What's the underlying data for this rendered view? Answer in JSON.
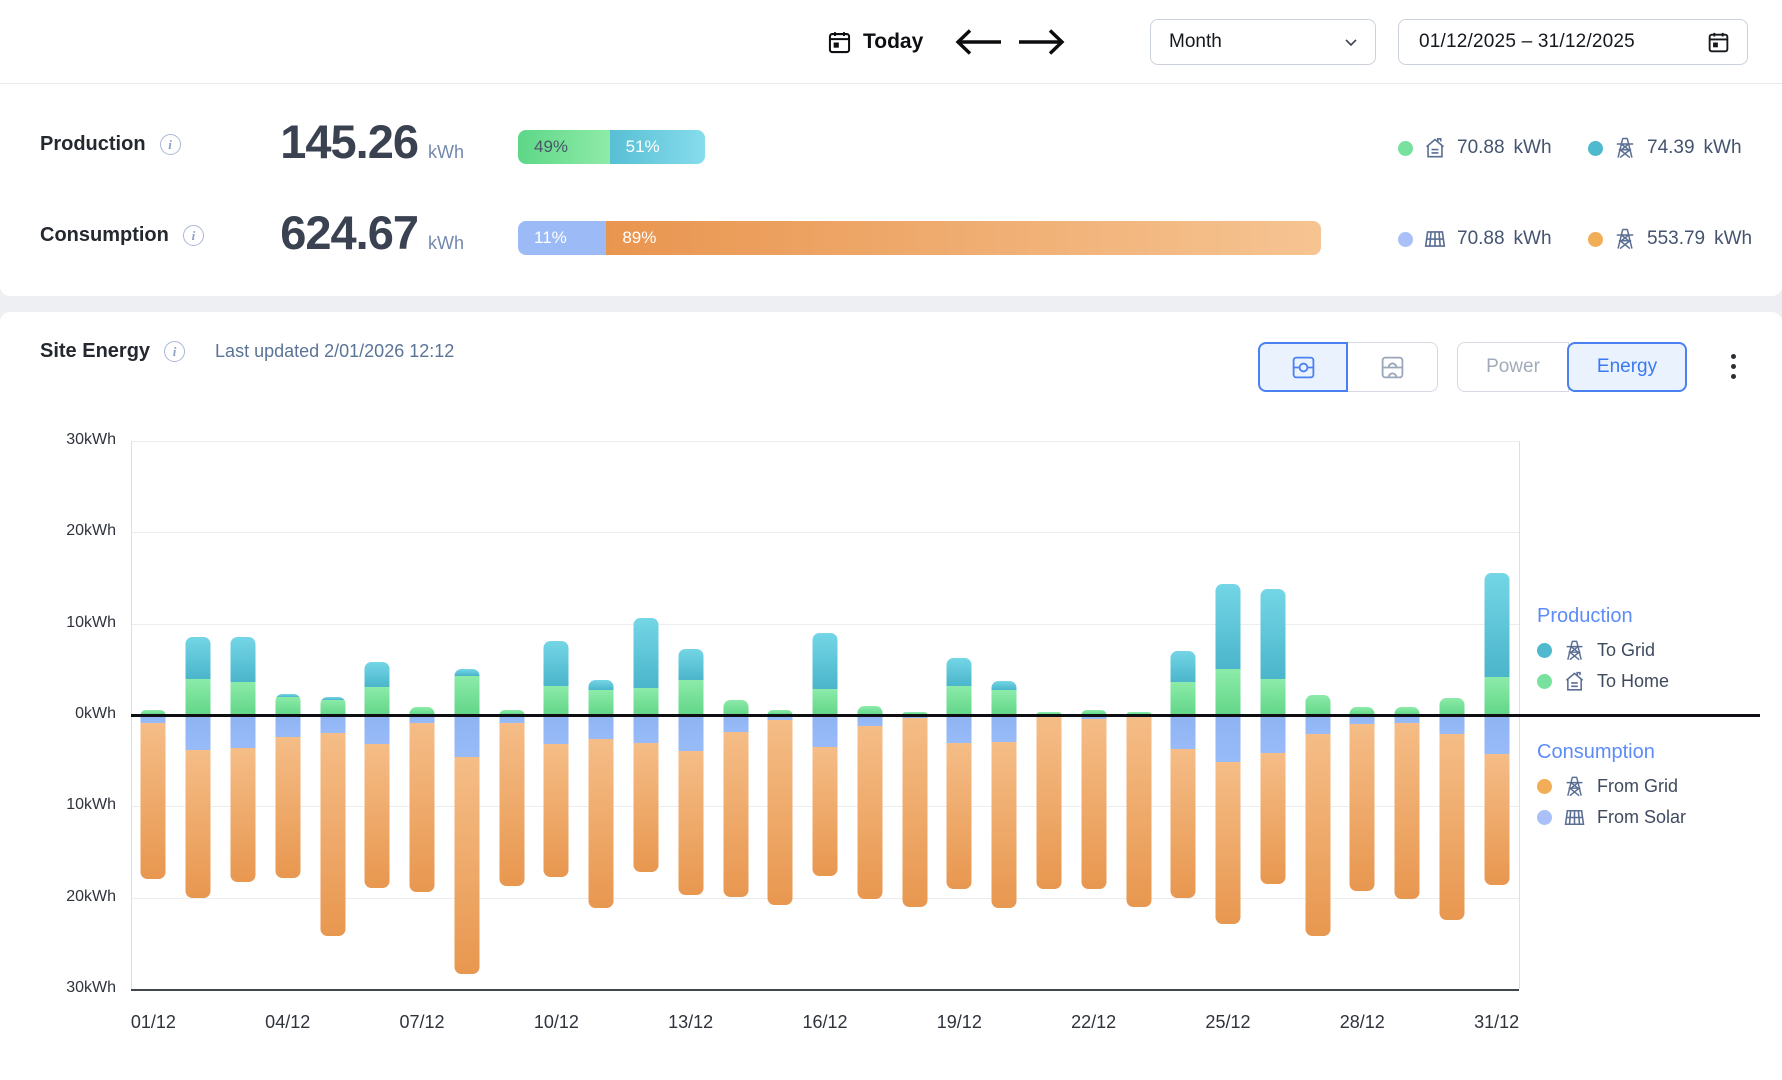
{
  "toolbar": {
    "today_label": "Today",
    "period_select": {
      "value": "Month"
    },
    "date_range": "01/12/2025 – 31/12/2025"
  },
  "summary": {
    "production": {
      "label": "Production",
      "value": "145.26",
      "unit": "kWh",
      "bar": {
        "segments": [
          {
            "label": "49%",
            "color": "#6edd92"
          },
          {
            "label": "51%",
            "color": "#6fcde0"
          }
        ]
      },
      "legend": [
        {
          "icon": "home-icon",
          "value": "70.88",
          "unit": "kWh",
          "color": "#79e19e"
        },
        {
          "icon": "grid-tower-icon",
          "value": "74.39",
          "unit": "kWh",
          "color": "#4fb9ce"
        }
      ]
    },
    "consumption": {
      "label": "Consumption",
      "value": "624.67",
      "unit": "kWh",
      "bar": {
        "segments": [
          {
            "label": "11%",
            "color": "#9cbaf6"
          },
          {
            "label": "89%",
            "color": "#efa565"
          }
        ]
      },
      "legend": [
        {
          "icon": "solar-panel-icon",
          "value": "70.88",
          "unit": "kWh",
          "color": "#a9c1f8"
        },
        {
          "icon": "grid-tower-icon",
          "value": "553.79",
          "unit": "kWh",
          "color": "#f2ae57"
        }
      ]
    }
  },
  "site_energy": {
    "title": "Site Energy",
    "last_updated": "Last updated 2/01/2026 12:12",
    "view_toggle": {
      "options": [
        "meter-view",
        "layered-view"
      ],
      "selected": "meter-view"
    },
    "mode_toggle": {
      "options": [
        "Power",
        "Energy"
      ],
      "selected": "Energy"
    }
  },
  "chart_data": {
    "type": "bar",
    "stacked": true,
    "orientation": "diverging",
    "unit": "kWh",
    "y_max": 30,
    "y_tick_step": 10,
    "grid": true,
    "y_axis_labels": [
      "30kWh",
      "20kWh",
      "10kWh",
      "0kWh",
      "10kWh",
      "20kWh",
      "30kWh"
    ],
    "categories": [
      "01/12",
      "02/12",
      "03/12",
      "04/12",
      "05/12",
      "06/12",
      "07/12",
      "08/12",
      "09/12",
      "10/12",
      "11/12",
      "12/12",
      "13/12",
      "14/12",
      "15/12",
      "16/12",
      "17/12",
      "18/12",
      "19/12",
      "20/12",
      "21/12",
      "22/12",
      "23/12",
      "24/12",
      "25/12",
      "26/12",
      "27/12",
      "28/12",
      "29/12",
      "30/12",
      "31/12"
    ],
    "x_tick_labels": [
      "01/12",
      "04/12",
      "07/12",
      "10/12",
      "13/12",
      "16/12",
      "19/12",
      "22/12",
      "25/12",
      "28/12",
      "31/12"
    ],
    "x_tick_every": 3,
    "series": [
      {
        "name": "To Grid",
        "group": "production",
        "direction": "up",
        "color": "#56bdd1",
        "values": [
          0.1,
          4.5,
          4.9,
          0.3,
          0.3,
          2.7,
          0,
          0.7,
          0,
          4.9,
          1.1,
          7.6,
          3.4,
          0,
          0,
          6.1,
          0,
          0,
          3.1,
          1.0,
          0,
          0,
          0,
          3.4,
          9.3,
          9.9,
          0,
          0,
          0,
          0,
          11.3
        ]
      },
      {
        "name": "To Home",
        "group": "production",
        "direction": "up",
        "color": "#78e09c",
        "values": [
          0.5,
          4.0,
          3.6,
          2.0,
          1.7,
          3.1,
          0.9,
          4.3,
          0.6,
          3.2,
          2.7,
          3.0,
          3.8,
          1.7,
          0.6,
          2.9,
          1.0,
          0.3,
          3.2,
          2.7,
          0.3,
          0.5,
          0.3,
          3.6,
          5.0,
          3.9,
          2.2,
          0.9,
          0.9,
          1.9,
          4.2
        ]
      },
      {
        "name": "From Solar",
        "group": "consumption",
        "direction": "down",
        "color": "#93b6f4",
        "values": [
          0.9,
          3.8,
          3.6,
          2.4,
          2.0,
          3.2,
          0.9,
          4.6,
          0.9,
          3.2,
          2.6,
          3.1,
          3.9,
          1.9,
          0.5,
          3.5,
          1.2,
          0.3,
          3.1,
          2.9,
          0.2,
          0.4,
          0.1,
          3.7,
          5.1,
          4.2,
          2.1,
          1.0,
          0.9,
          2.1,
          4.3
        ]
      },
      {
        "name": "From Grid",
        "group": "consumption",
        "direction": "down",
        "color": "#eda564",
        "values": [
          17.1,
          16.2,
          14.7,
          15.4,
          22.2,
          15.8,
          18.5,
          23.7,
          17.8,
          14.6,
          18.5,
          14.1,
          15.8,
          18.0,
          20.3,
          14.1,
          18.9,
          20.7,
          16.0,
          18.2,
          18.9,
          18.6,
          20.9,
          16.3,
          17.8,
          14.3,
          22.1,
          18.3,
          19.3,
          20.4,
          14.3
        ]
      }
    ],
    "legend": {
      "position": "right",
      "production": {
        "title": "Production",
        "items": [
          {
            "label": "To Grid",
            "icon": "grid-tower-icon",
            "color": "#4fb9ce"
          },
          {
            "label": "To Home",
            "icon": "home-icon",
            "color": "#79e19e"
          }
        ]
      },
      "consumption": {
        "title": "Consumption",
        "items": [
          {
            "label": "From Grid",
            "icon": "grid-tower-icon",
            "color": "#f2ae57"
          },
          {
            "label": "From Solar",
            "icon": "solar-panel-icon",
            "color": "#a9c1f8"
          }
        ]
      }
    }
  }
}
